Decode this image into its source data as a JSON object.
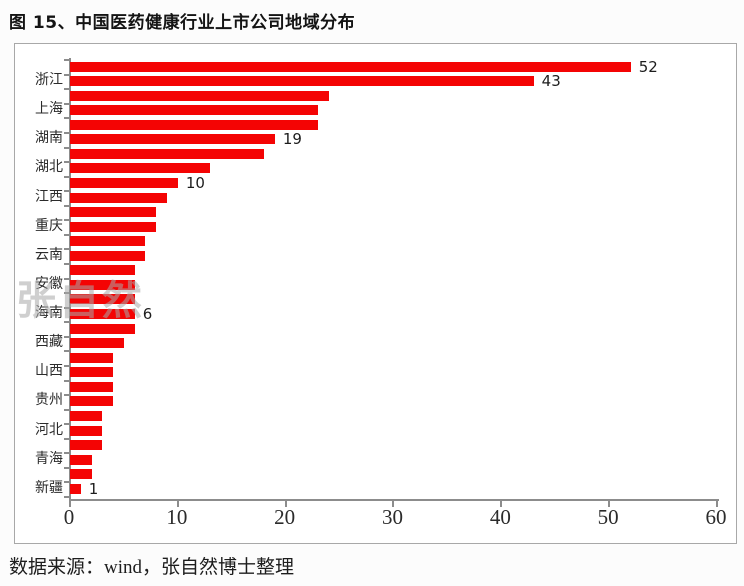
{
  "title": "图 15、中国医药健康行业上市公司地域分布",
  "watermark": {
    "text": "张自然"
  },
  "footer": "数据来源：wind，张自然博士整理",
  "colors": {
    "bar": "#f40404",
    "axis": "#8c8c8c",
    "frame_border": "#a8a8a8",
    "text": "#1d1d1d",
    "watermark": "#a9a9a9"
  },
  "chart_data": {
    "type": "bar",
    "orientation": "horizontal",
    "title": "图 15、中国医药健康行业上市公司地域分布",
    "categories": [
      "",
      "浙江",
      "",
      "上海",
      "",
      "湖南",
      "",
      "湖北",
      "",
      "江西",
      "",
      "重庆",
      "",
      "云南",
      "",
      "安徽",
      "",
      "海南",
      "",
      "西藏",
      "",
      "山西",
      "",
      "贵州",
      "",
      "河北",
      "",
      "青海",
      "",
      "新疆"
    ],
    "values": [
      52,
      43,
      24,
      23,
      23,
      19,
      18,
      13,
      10,
      9,
      8,
      8,
      7,
      7,
      6,
      6,
      6,
      6,
      6,
      5,
      4,
      4,
      4,
      4,
      3,
      3,
      3,
      2,
      2,
      1
    ],
    "visible_category_labels": [
      "浙江",
      "上海",
      "湖南",
      "湖北",
      "江西",
      "重庆",
      "云南",
      "安徽",
      "海南",
      "西藏",
      "山西",
      "贵州",
      "河北",
      "青海",
      "新疆"
    ],
    "data_labels": {
      "0": "52",
      "1": "43",
      "5": "19",
      "8": "10",
      "17": "6",
      "29": "1"
    },
    "xticks": [
      "0",
      "10",
      "20",
      "30",
      "40",
      "50",
      "60"
    ],
    "xlabel": "",
    "ylabel": "",
    "xlim": [
      0,
      60
    ],
    "grid": false,
    "legend": false,
    "bar_color": "#f40404",
    "source_note": "数据来源：wind，张自然博士整理"
  }
}
